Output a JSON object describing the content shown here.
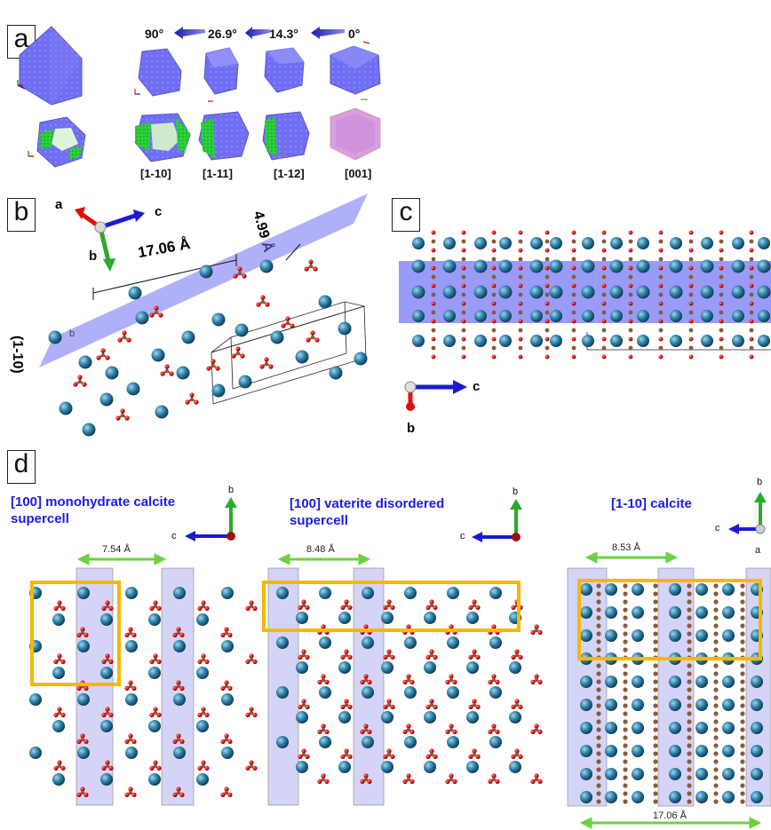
{
  "panels": {
    "a": "a",
    "b": "b",
    "c": "c",
    "d": "d"
  },
  "panel_a": {
    "angles": [
      "90°",
      "26.9°",
      "14.3°",
      "0°"
    ],
    "directions": [
      "[1-10]",
      "[1-11]",
      "[1-12]",
      "[001]"
    ]
  },
  "panel_b": {
    "axis_a": "a",
    "axis_b": "b",
    "axis_c": "c",
    "length": "17.06 Å",
    "spacing": "4.99 Å",
    "plane": "(1-10)",
    "cell_b": "b"
  },
  "panel_c": {
    "axis_c": "c",
    "axis_b": "b"
  },
  "panel_d": {
    "titles": [
      {
        "line1": "[100] monohydrate calcite",
        "line2": "supercell"
      },
      {
        "line1": "[100] vaterite disordered",
        "line2": "supercell"
      },
      {
        "line1": "[1-10] calcite",
        "line2": ""
      }
    ],
    "axes": {
      "b": "b",
      "c": "c",
      "a": "a"
    },
    "widths": [
      "7.54 Å",
      "8.48 Å",
      "8.53 Å"
    ],
    "bottom_width": "17.06 Å"
  },
  "colors": {
    "ca": "#2e7fa6",
    "o": "#e0110e",
    "c_atom": "#8a5a3c",
    "plane": "#6f6ff5",
    "highlight": "#f5b800",
    "arrow_green": "#6fd040",
    "title_blue": "#1a1ae6"
  }
}
